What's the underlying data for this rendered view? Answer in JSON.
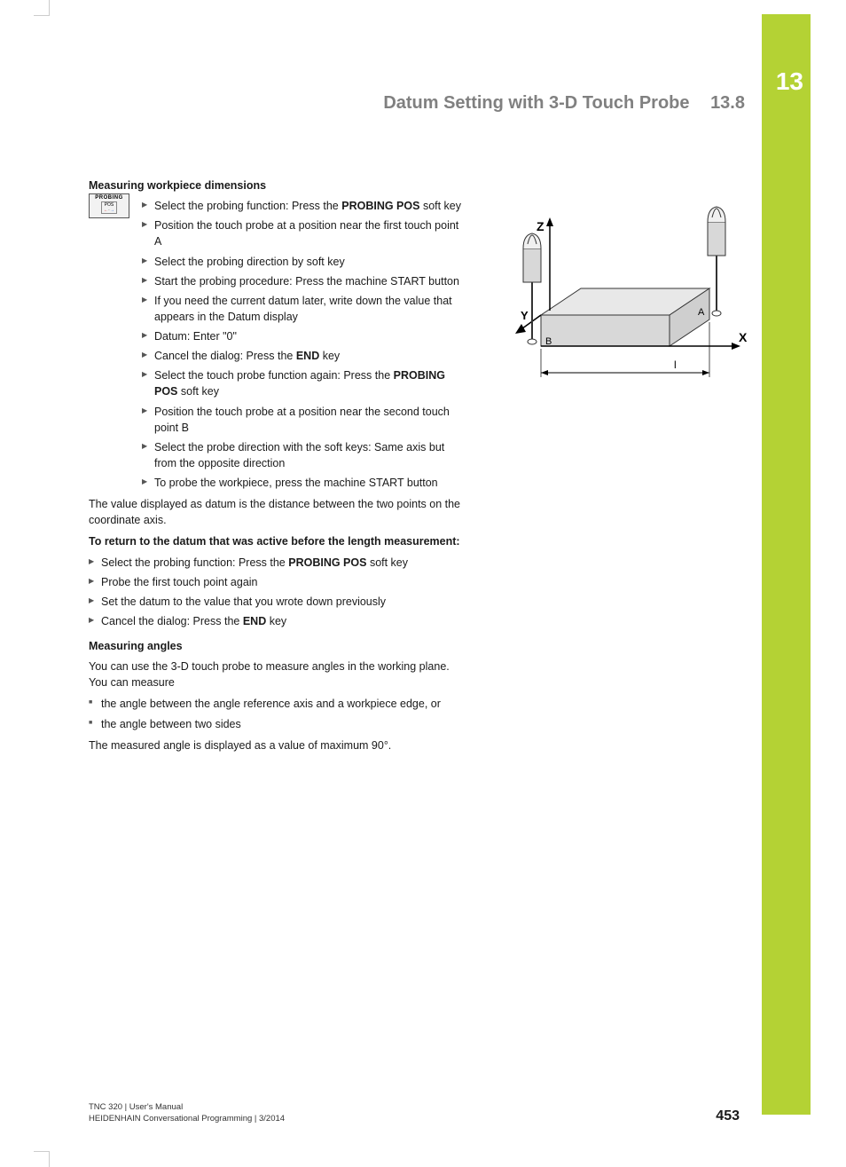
{
  "chapter": {
    "number": "13",
    "title": "Datum Setting with 3-D Touch Probe",
    "section_number": "13.8",
    "green_bar_color": "#b4d234"
  },
  "icon_button": {
    "top_label": "PROBING",
    "bottom_label": "POS"
  },
  "section1": {
    "heading": "Measuring workpiece dimensions",
    "steps": [
      {
        "pre": "Select the probing function: Press the ",
        "bold": "PROBING POS",
        "post": " soft key"
      },
      {
        "pre": "Position the touch probe at a position near the first touch point A"
      },
      {
        "pre": "Select the probing direction by soft key"
      },
      {
        "pre": "Start the probing procedure: Press the machine START button"
      },
      {
        "pre": "If you need the current datum later, write down the value that appears in the Datum display"
      },
      {
        "pre": "Datum: Enter \"0\""
      },
      {
        "pre": "Cancel the dialog: Press the ",
        "bold": "END",
        "post": " key"
      },
      {
        "pre": "Select the touch probe function again: Press the ",
        "bold": "PROBING POS",
        "post": " soft key"
      },
      {
        "pre": "Position the touch probe at a position near the second touch point B"
      },
      {
        "pre": "Select the probe direction with the soft keys: Same axis but from the opposite direction"
      },
      {
        "pre": "To probe the workpiece, press the machine START button"
      }
    ],
    "after": "The value displayed as datum is the distance between the two points on the coordinate axis."
  },
  "section2": {
    "heading": "To return to the datum that was active before the length measurement:",
    "steps": [
      {
        "pre": "Select the probing function: Press the ",
        "bold": "PROBING POS",
        "post": " soft key"
      },
      {
        "pre": "Probe the first touch point again"
      },
      {
        "pre": "Set the datum to the value that you wrote down previously"
      },
      {
        "pre": "Cancel the dialog: Press the ",
        "bold": "END",
        "post": " key"
      }
    ]
  },
  "section3": {
    "heading": "Measuring angles",
    "intro": "You can use the 3-D touch probe to measure angles in the working plane. You can measure",
    "bullets": [
      "the angle between the angle reference axis and a workpiece edge, or",
      "the angle between two sides"
    ],
    "after": "The measured angle is displayed as a value of maximum 90°."
  },
  "diagram": {
    "type": "technical-illustration",
    "axis_labels": {
      "x": "X",
      "y": "Y",
      "z": "Z"
    },
    "point_labels": {
      "a": "A",
      "b": "B"
    },
    "dimension_label": "l",
    "colors": {
      "workpiece_fill": "#e8e8e8",
      "workpiece_stroke": "#333333",
      "probe_fill": "#d8d8d8",
      "probe_stroke": "#333333",
      "axis_stroke": "#000000",
      "background": "#ffffff"
    },
    "line_widths": {
      "axis": 1.5,
      "body": 1
    }
  },
  "footer": {
    "line1": "TNC 320 | User's Manual",
    "line2": "HEIDENHAIN Conversational Programming | 3/2014",
    "page_number": "453"
  }
}
